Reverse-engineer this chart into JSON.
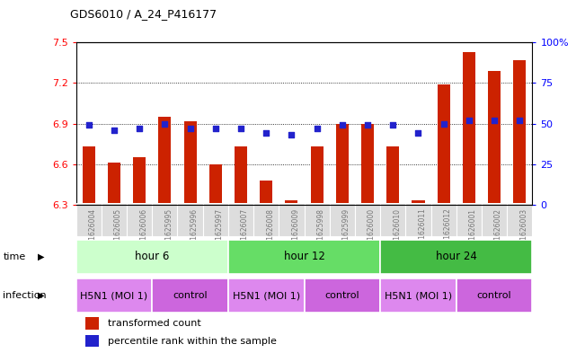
{
  "title": "GDS6010 / A_24_P416177",
  "samples": [
    "GSM1626004",
    "GSM1626005",
    "GSM1626006",
    "GSM1625995",
    "GSM1625996",
    "GSM1625997",
    "GSM1626007",
    "GSM1626008",
    "GSM1626009",
    "GSM1625998",
    "GSM1625999",
    "GSM1626000",
    "GSM1626010",
    "GSM1626011",
    "GSM1626012",
    "GSM1626001",
    "GSM1626002",
    "GSM1626003"
  ],
  "bar_values": [
    6.73,
    6.61,
    6.65,
    6.95,
    6.92,
    6.6,
    6.73,
    6.48,
    6.33,
    6.73,
    6.9,
    6.9,
    6.73,
    6.33,
    7.19,
    7.43,
    7.29,
    7.37
  ],
  "dot_values": [
    49,
    46,
    47,
    50,
    47,
    47,
    47,
    44,
    43,
    47,
    49,
    49,
    49,
    44,
    50,
    52,
    52,
    52
  ],
  "ylim_left": [
    6.3,
    7.5
  ],
  "ylim_right": [
    0,
    100
  ],
  "yticks_left": [
    6.3,
    6.6,
    6.9,
    7.2,
    7.5
  ],
  "yticks_right": [
    0,
    25,
    50,
    75,
    100
  ],
  "ytick_labels_right": [
    "0",
    "25",
    "50",
    "75",
    "100%"
  ],
  "hlines": [
    6.6,
    6.9,
    7.2
  ],
  "bar_color": "#cc2200",
  "dot_color": "#2222cc",
  "bar_width": 0.5,
  "time_groups": [
    {
      "label": "hour 6",
      "start": 0,
      "end": 6,
      "color": "#ccffcc"
    },
    {
      "label": "hour 12",
      "start": 6,
      "end": 12,
      "color": "#66dd66"
    },
    {
      "label": "hour 24",
      "start": 12,
      "end": 18,
      "color": "#44bb44"
    }
  ],
  "infection_groups": [
    {
      "label": "H5N1 (MOI 1)",
      "start": 0,
      "end": 3,
      "color": "#dd88ee"
    },
    {
      "label": "control",
      "start": 3,
      "end": 6,
      "color": "#cc66dd"
    },
    {
      "label": "H5N1 (MOI 1)",
      "start": 6,
      "end": 9,
      "color": "#dd88ee"
    },
    {
      "label": "control",
      "start": 9,
      "end": 12,
      "color": "#cc66dd"
    },
    {
      "label": "H5N1 (MOI 1)",
      "start": 12,
      "end": 15,
      "color": "#dd88ee"
    },
    {
      "label": "control",
      "start": 15,
      "end": 18,
      "color": "#cc66dd"
    }
  ],
  "legend_items": [
    {
      "label": "transformed count",
      "color": "#cc2200"
    },
    {
      "label": "percentile rank within the sample",
      "color": "#2222cc"
    }
  ],
  "sample_label_color": "#777777",
  "sample_box_color": "#dddddd",
  "time_label": "time",
  "infection_label": "infection"
}
